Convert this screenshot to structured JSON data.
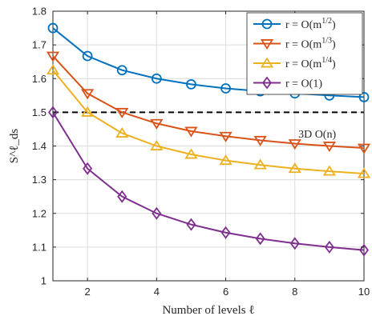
{
  "chart_data": {
    "type": "line",
    "title": "",
    "xlabel": "Number of levels ℓ",
    "ylabel": "S^ℓ_ds",
    "xlim": [
      1,
      10
    ],
    "ylim": [
      1,
      1.8
    ],
    "xticks": [
      2,
      4,
      6,
      8,
      10
    ],
    "yticks": [
      1,
      1.1,
      1.2,
      1.3,
      1.4,
      1.5,
      1.6,
      1.7,
      1.8
    ],
    "xtick_labels": [
      "2",
      "4",
      "6",
      "8",
      "10"
    ],
    "ytick_labels": [
      "1",
      "1.1",
      "1.2",
      "1.3",
      "1.4",
      "1.5",
      "1.6",
      "1.7",
      "1.8"
    ],
    "grid": true,
    "legend_position": "top-right",
    "x": [
      1,
      2,
      3,
      4,
      5,
      6,
      7,
      8,
      9,
      10
    ],
    "series": [
      {
        "name": "r = O(m^{1/2})",
        "marker": "circle",
        "color": "#0072BD",
        "values": [
          1.75,
          1.667,
          1.625,
          1.6,
          1.583,
          1.571,
          1.5625,
          1.556,
          1.55,
          1.545
        ]
      },
      {
        "name": "r = O(m^{1/3})",
        "marker": "triangle-down",
        "color": "#D95319",
        "values": [
          1.667,
          1.556,
          1.5,
          1.467,
          1.444,
          1.429,
          1.417,
          1.407,
          1.4,
          1.394
        ]
      },
      {
        "name": "r = O(m^{1/4})",
        "marker": "triangle-up",
        "color": "#EDB120",
        "values": [
          1.625,
          1.5,
          1.438,
          1.4,
          1.375,
          1.357,
          1.344,
          1.333,
          1.325,
          1.318
        ]
      },
      {
        "name": "r = O(1)",
        "marker": "diamond",
        "color": "#7E2F8E",
        "values": [
          1.5,
          1.333,
          1.25,
          1.2,
          1.167,
          1.143,
          1.125,
          1.111,
          1.1,
          1.091
        ]
      }
    ],
    "reference_line": {
      "y": 1.5,
      "style": "dashed",
      "color": "#000000",
      "label": "3D O(n)"
    }
  }
}
